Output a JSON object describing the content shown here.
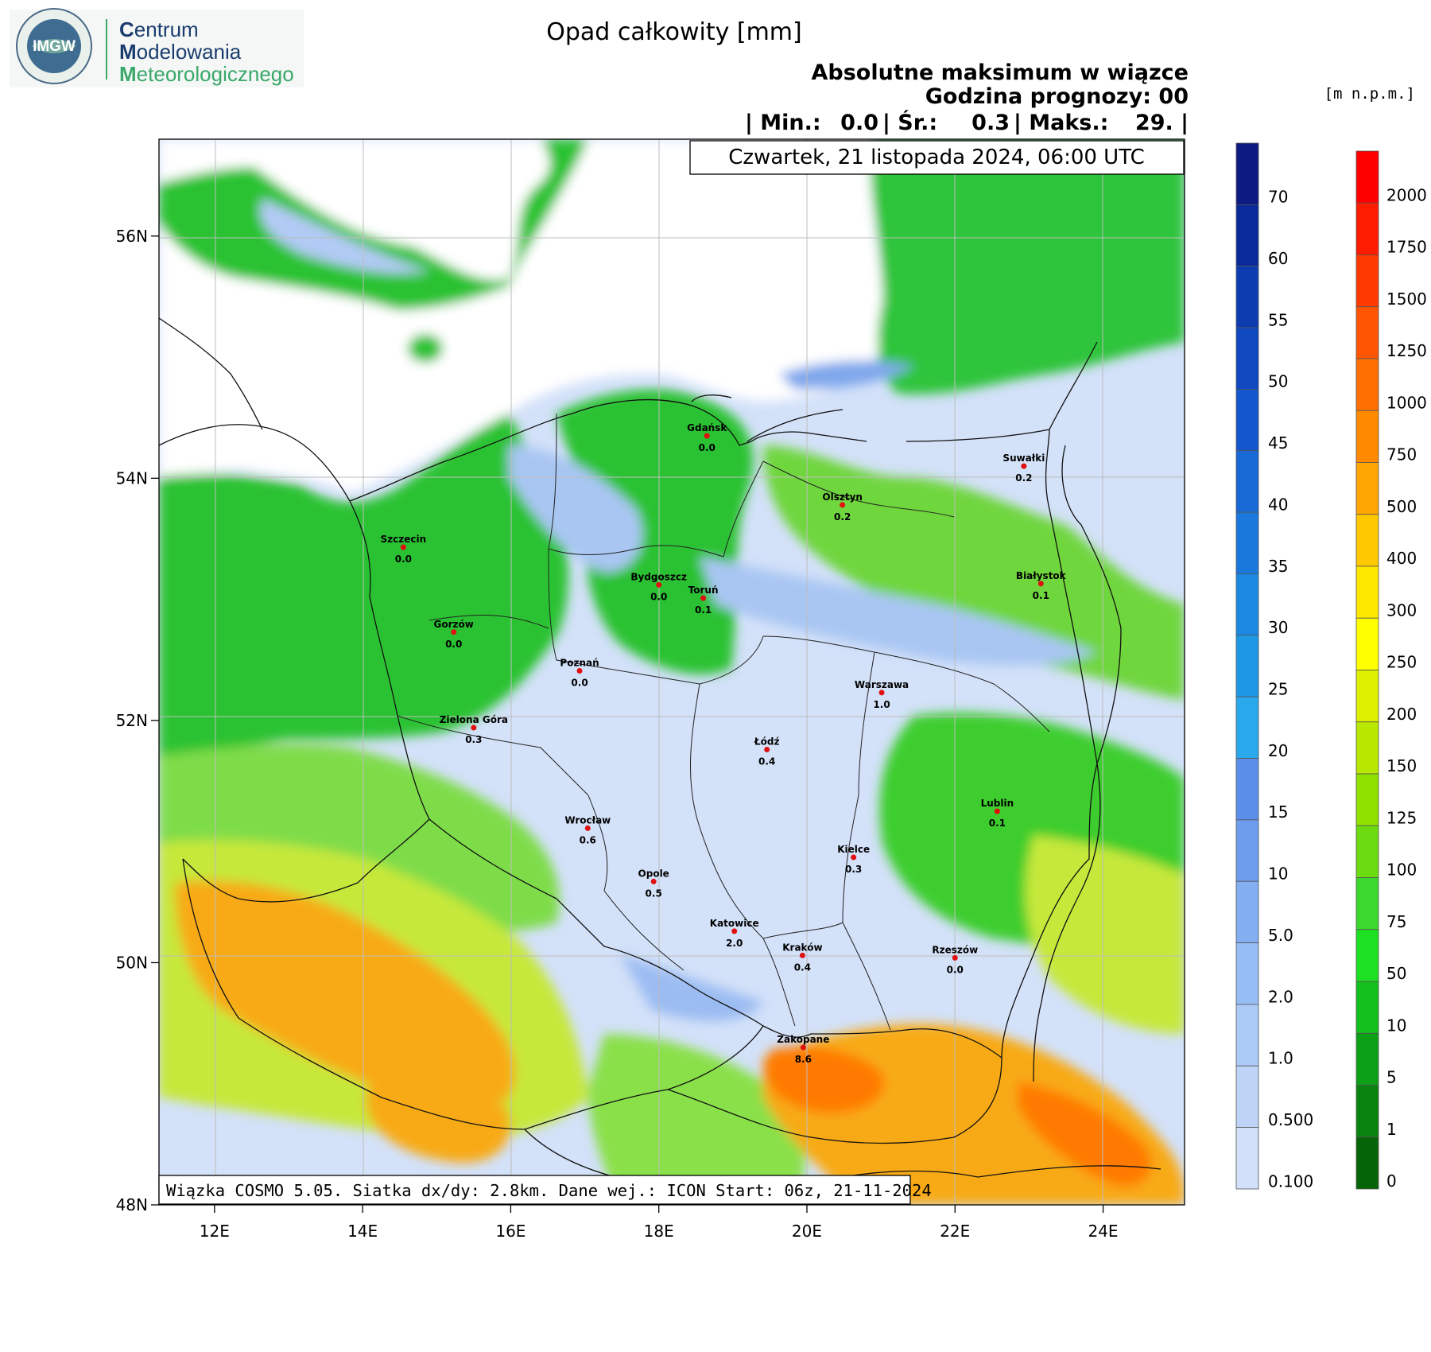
{
  "logo": {
    "emblem_text": "IMGW",
    "line1_initial": "C",
    "line1_rest": "entrum",
    "line2_initial": "M",
    "line2_rest": "odelowania",
    "line3_initial": "M",
    "line3_rest": "eteorologicznego",
    "green": "#3aa86b",
    "navy": "#1a3c6e"
  },
  "header": {
    "title": "Opad całkowity [mm]",
    "subtitle1": "Absolutne maksimum w wiązce",
    "subtitle2": "Godzina prognozy: 00",
    "stats": {
      "min_label": "| Min.:",
      "min_value": "0.0",
      "avg_label": "| Śr.:",
      "avg_value": "0.3",
      "max_label": "| Maks.:",
      "max_value": "29. |"
    }
  },
  "date_box": "Czwartek, 21 listopada 2024, 06:00 UTC",
  "footer_box": "Wiązka COSMO 5.05. Siatka dx/dy: 2.8km. Dane wej.: ICON Start: 06z, 21-11-2024",
  "axes": {
    "lat_labels": [
      "56N",
      "54N",
      "52N",
      "50N",
      "48N"
    ],
    "lat_values": [
      56,
      54,
      52,
      50,
      48
    ],
    "lon_labels": [
      "12E",
      "14E",
      "16E",
      "18E",
      "20E",
      "22E",
      "24E"
    ],
    "lon_values": [
      12,
      14,
      16,
      18,
      20,
      22,
      24
    ]
  },
  "cities": [
    {
      "name": "Gdańsk",
      "value": "0.0",
      "lon": 18.65,
      "lat": 54.35
    },
    {
      "name": "Suwałki",
      "value": "0.2",
      "lon": 22.93,
      "lat": 54.1
    },
    {
      "name": "Olsztyn",
      "value": "0.2",
      "lon": 20.48,
      "lat": 53.78
    },
    {
      "name": "Szczecin",
      "value": "0.0",
      "lon": 14.55,
      "lat": 53.43
    },
    {
      "name": "Bydgoszcz",
      "value": "0.0",
      "lon": 18.0,
      "lat": 53.12
    },
    {
      "name": "Toruń",
      "value": "0.1",
      "lon": 18.6,
      "lat": 53.01
    },
    {
      "name": "Białystok",
      "value": "0.1",
      "lon": 23.16,
      "lat": 53.13
    },
    {
      "name": "Gorzów",
      "value": "0.0",
      "lon": 15.23,
      "lat": 52.73
    },
    {
      "name": "Poznań",
      "value": "0.0",
      "lon": 16.93,
      "lat": 52.41
    },
    {
      "name": "Warszawa",
      "value": "1.0",
      "lon": 21.01,
      "lat": 52.23
    },
    {
      "name": "Zielona Góra",
      "value": "0.3",
      "lon": 15.5,
      "lat": 51.94
    },
    {
      "name": "Łódź",
      "value": "0.4",
      "lon": 19.46,
      "lat": 51.76
    },
    {
      "name": "Lublin",
      "value": "0.1",
      "lon": 22.57,
      "lat": 51.25
    },
    {
      "name": "Wrocław",
      "value": "0.6",
      "lon": 17.04,
      "lat": 51.11
    },
    {
      "name": "Kielce",
      "value": "0.3",
      "lon": 20.63,
      "lat": 50.87
    },
    {
      "name": "Opole",
      "value": "0.5",
      "lon": 17.93,
      "lat": 50.67
    },
    {
      "name": "Katowice",
      "value": "2.0",
      "lon": 19.02,
      "lat": 50.26
    },
    {
      "name": "Kraków",
      "value": "0.4",
      "lon": 19.94,
      "lat": 50.06
    },
    {
      "name": "Rzeszów",
      "value": "0.0",
      "lon": 22.0,
      "lat": 50.04
    },
    {
      "name": "Zakopane",
      "value": "8.6",
      "lon": 19.95,
      "lat": 49.3
    }
  ],
  "precip_scale": {
    "labels": [
      "70",
      "60",
      "55",
      "50",
      "45",
      "40",
      "35",
      "30",
      "25",
      "20",
      "15",
      "10",
      "5.0",
      "2.0",
      "1.0",
      "0.500",
      "0.100"
    ],
    "colors": [
      "#0c1a82",
      "#0a2a9a",
      "#0c3cb0",
      "#1048bf",
      "#1457cc",
      "#1868d6",
      "#1a78dc",
      "#1b88e2",
      "#1e98e6",
      "#2aa8ec",
      "#5a8ee8",
      "#6e9ded",
      "#83aef1",
      "#97bef4",
      "#abcaf6",
      "#bdd4f7",
      "#d2e0f9"
    ]
  },
  "elev_scale": {
    "unit": "[m n.p.m.]",
    "labels": [
      "2000",
      "1750",
      "1500",
      "1250",
      "1000",
      "750",
      "500",
      "400",
      "300",
      "250",
      "200",
      "150",
      "125",
      "100",
      "75",
      "50",
      "10",
      "5",
      "1",
      "0"
    ],
    "colors": [
      "#ff0000",
      "#ff1c00",
      "#ff3a00",
      "#ff5500",
      "#ff7000",
      "#ff8a00",
      "#ffa600",
      "#ffc800",
      "#ffe800",
      "#ffff00",
      "#ddf000",
      "#b8e800",
      "#90e000",
      "#6cdc10",
      "#3cd82e",
      "#1ee022",
      "#14c01e",
      "#0ca016",
      "#0a820f",
      "#066408"
    ]
  }
}
